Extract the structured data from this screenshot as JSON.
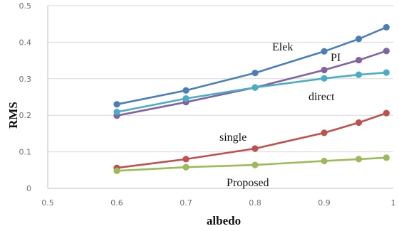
{
  "chart_data": {
    "type": "line",
    "xlabel": "albedo",
    "ylabel": "RMS",
    "xlim": [
      0.5,
      1.0
    ],
    "ylim": [
      0,
      0.5
    ],
    "grid": "horizontal",
    "legend": "inline labels",
    "x_ticks": [
      "0.5",
      "0.6",
      "0.7",
      "0.8",
      "0.9",
      "1"
    ],
    "y_ticks": [
      "0",
      "0.1",
      "0.2",
      "0.3",
      "0.4",
      "0.5"
    ],
    "series": [
      {
        "name": "Elek",
        "color": "#4a7ebb",
        "x": [
          0.6,
          0.7,
          0.8,
          0.9,
          0.95,
          0.99
        ],
        "values": [
          0.23,
          0.268,
          0.316,
          0.375,
          0.409,
          0.441
        ]
      },
      {
        "name": "PI",
        "color": "#8064a2",
        "x": [
          0.6,
          0.7,
          0.8,
          0.9,
          0.95,
          0.99
        ],
        "values": [
          0.199,
          0.236,
          0.276,
          0.324,
          0.351,
          0.376
        ]
      },
      {
        "name": "direct",
        "color": "#4bacc6",
        "x": [
          0.6,
          0.7,
          0.8,
          0.9,
          0.95,
          0.99
        ],
        "values": [
          0.209,
          0.246,
          0.276,
          0.301,
          0.311,
          0.317
        ]
      },
      {
        "name": "single",
        "color": "#c0504d",
        "x": [
          0.6,
          0.7,
          0.8,
          0.9,
          0.95,
          0.99
        ],
        "values": [
          0.056,
          0.08,
          0.109,
          0.152,
          0.18,
          0.206
        ]
      },
      {
        "name": "Proposed",
        "color": "#9bbb59",
        "x": [
          0.6,
          0.7,
          0.8,
          0.9,
          0.95,
          0.99
        ],
        "values": [
          0.048,
          0.058,
          0.064,
          0.075,
          0.08,
          0.084
        ]
      }
    ]
  }
}
